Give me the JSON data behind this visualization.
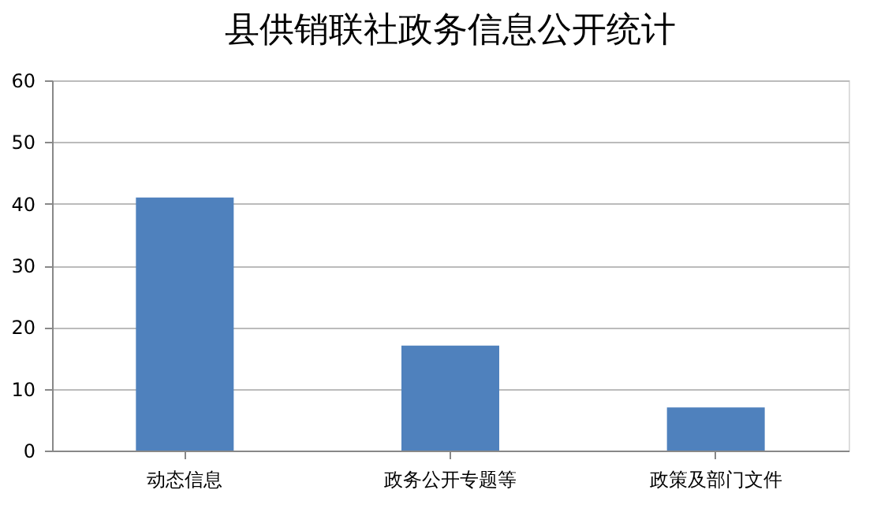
{
  "chart_data": {
    "type": "bar",
    "title": "县供销联社政务信息公开统计",
    "categories": [
      "动态信息",
      "政务公开专题等",
      "政策及部门文件"
    ],
    "values": [
      41,
      17,
      7
    ],
    "color": "#4f81bd",
    "ylim": [
      0,
      60
    ],
    "yticks": [
      0,
      10,
      20,
      30,
      40,
      50,
      60
    ],
    "grid": "y"
  }
}
